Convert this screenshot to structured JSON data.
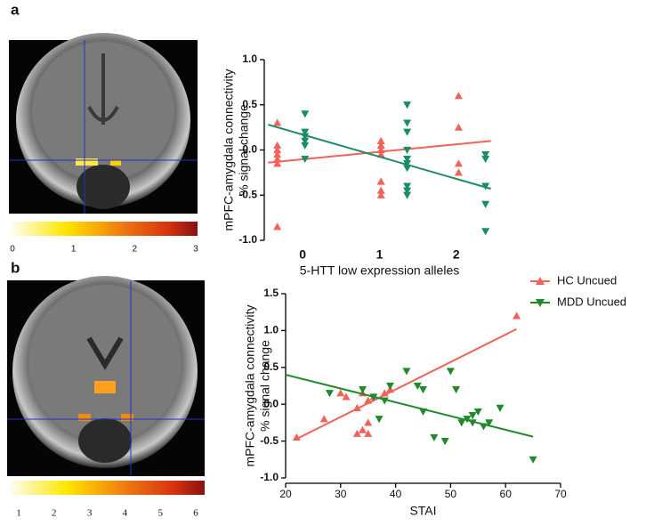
{
  "panels": [
    {
      "label": "a",
      "colorbar_ticks": [
        0,
        1,
        2,
        3
      ]
    },
    {
      "label": "b",
      "colorbar_ticks": [
        1,
        2,
        3,
        4,
        5,
        6
      ]
    }
  ],
  "chart_data": [
    {
      "type": "scatter",
      "xlabel": "5-HTT low expression alleles",
      "ylabel": [
        "mPFC-amygdala connectivity",
        "% signal change"
      ],
      "xlim": [
        -0.5,
        2.5
      ],
      "xticks": [
        0,
        1,
        2
      ],
      "ylim": [
        -1,
        1
      ],
      "yticks": [
        {
          "value": -1,
          "label": "-1.0"
        },
        {
          "value": -0.5,
          "label": "-0.5"
        },
        {
          "value": 0,
          "label": "0.0"
        },
        {
          "value": 0.5,
          "label": "0.5"
        },
        {
          "value": 1,
          "label": "1.0"
        }
      ],
      "series": [
        {
          "name": "HC Uncued",
          "color": "#f0625a",
          "marker": "triangle-up",
          "x": [
            -0.33,
            -0.33,
            -0.33,
            -0.33,
            -0.33,
            -0.33,
            -0.33,
            1.02,
            1.02,
            1.02,
            1.02,
            1.02,
            1.02,
            1.02,
            2.03,
            2.03,
            2.03,
            2.03
          ],
          "values": [
            0.3,
            0.05,
            0,
            -0.05,
            -0.1,
            -0.15,
            -0.85,
            0.1,
            0.05,
            0,
            -0.05,
            -0.35,
            -0.45,
            -0.5,
            0.6,
            0.25,
            -0.15,
            -0.25
          ],
          "fit": [
            [
              -0.45,
              -0.14
            ],
            [
              2.45,
              0.1
            ]
          ]
        },
        {
          "name": "MDD Uncued",
          "color": "#1b8c64",
          "marker": "triangle-down",
          "x": [
            0.03,
            0.03,
            0.03,
            0.03,
            0.03,
            0.03,
            1.36,
            1.36,
            1.36,
            1.36,
            1.36,
            1.36,
            1.36,
            1.36,
            1.36,
            1.36,
            2.38,
            2.38,
            2.38,
            2.38,
            2.38
          ],
          "values": [
            0.4,
            0.2,
            0.15,
            0.1,
            0.05,
            -0.1,
            0.5,
            0.3,
            0.2,
            0,
            -0.1,
            -0.15,
            -0.2,
            -0.4,
            -0.45,
            -0.5,
            -0.05,
            -0.1,
            -0.4,
            -0.6,
            -0.9
          ],
          "fit": [
            [
              -0.45,
              0.28
            ],
            [
              2.45,
              -0.43
            ]
          ]
        }
      ]
    },
    {
      "type": "scatter",
      "xlabel": "STAI",
      "ylabel": [
        "mPFC-amygdala connectivity",
        "% signal change"
      ],
      "xlim": [
        20,
        70
      ],
      "xticks": [
        20,
        30,
        40,
        50,
        60,
        70
      ],
      "ylim": [
        -1,
        1.5
      ],
      "yticks": [
        {
          "value": -1,
          "label": "-1.0"
        },
        {
          "value": -0.5,
          "label": "-0.5"
        },
        {
          "value": 0,
          "label": "0.0"
        },
        {
          "value": 0.5,
          "label": "0.5"
        },
        {
          "value": 1,
          "label": "1.0"
        },
        {
          "value": 1.5,
          "label": "1.5"
        }
      ],
      "legend": true,
      "series": [
        {
          "name": "HC Uncued",
          "color": "#f0625a",
          "marker": "triangle-up",
          "x": [
            22,
            27,
            30,
            31,
            33,
            33,
            34,
            34,
            35,
            35,
            35,
            36,
            38,
            39,
            62
          ],
          "values": [
            -0.45,
            -0.2,
            0.15,
            0.1,
            -0.05,
            -0.4,
            0.15,
            -0.35,
            -0.25,
            -0.4,
            0.05,
            0.1,
            0.15,
            0.2,
            1.2
          ],
          "fit": [
            [
              22,
              -0.47
            ],
            [
              62,
              1.02
            ]
          ]
        },
        {
          "name": "MDD Uncued",
          "color": "#1f8a2a",
          "marker": "triangle-down",
          "x": [
            28,
            34,
            36,
            37,
            38,
            39,
            42,
            44,
            45,
            45,
            47,
            49,
            50,
            51,
            52,
            53,
            54,
            54,
            55,
            56,
            57,
            59,
            65
          ],
          "values": [
            0.15,
            0.2,
            0.1,
            -0.2,
            0.05,
            0.25,
            0.45,
            0.25,
            0.2,
            -0.1,
            -0.45,
            -0.5,
            0.45,
            0.2,
            -0.25,
            -0.2,
            -0.15,
            -0.25,
            -0.1,
            -0.3,
            -0.25,
            -0.05,
            -0.75
          ],
          "fit": [
            [
              20,
              0.4
            ],
            [
              65,
              -0.44
            ]
          ]
        }
      ]
    }
  ]
}
